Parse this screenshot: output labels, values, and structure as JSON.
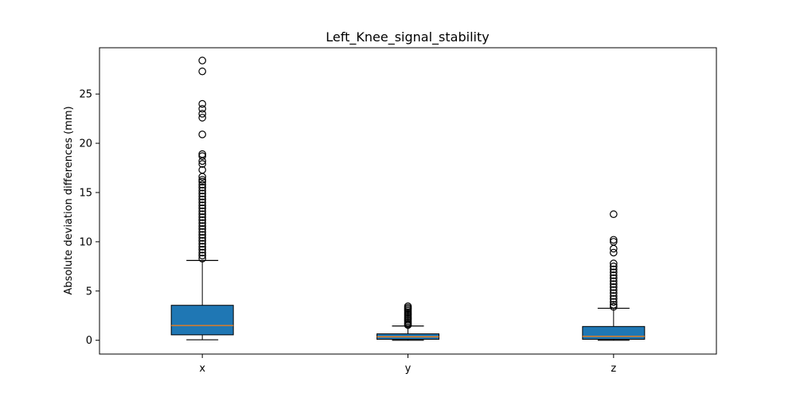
{
  "chart_data": {
    "type": "box",
    "title": "Left_Knee_signal_stability",
    "xlabel": "",
    "ylabel": "Absolute deviation differences (mm)",
    "categories": [
      "x",
      "y",
      "z"
    ],
    "ylim": [
      -1.4,
      29.7
    ],
    "yticks": [
      0,
      5,
      10,
      15,
      20,
      25
    ],
    "grid": false,
    "box_color": "#1f77b4",
    "median_color": "#ff7f0e",
    "boxes": [
      {
        "category": "x",
        "whisker_low": 0.05,
        "q1": 0.55,
        "median": 1.5,
        "q3": 3.55,
        "whisker_high": 8.1,
        "outliers": [
          28.4,
          27.3,
          24.0,
          23.5,
          23.0,
          22.6,
          20.9,
          18.9,
          18.7,
          18.2,
          17.9,
          17.3,
          16.6,
          16.3,
          16.1,
          15.8,
          15.5,
          15.2,
          14.9,
          14.6,
          14.3,
          14.0,
          13.7,
          13.4,
          13.1,
          12.8,
          12.5,
          12.2,
          11.9,
          11.6,
          11.3,
          11.0,
          10.7,
          10.4,
          10.1,
          9.8,
          9.5,
          9.2,
          8.9,
          8.6,
          8.3
        ]
      },
      {
        "category": "y",
        "whisker_low": 0.0,
        "q1": 0.1,
        "median": 0.35,
        "q3": 0.65,
        "whisker_high": 1.45,
        "outliers": [
          3.45,
          3.3,
          3.15,
          3.0,
          2.85,
          2.7,
          2.55,
          2.4,
          2.25,
          2.1,
          1.95,
          1.8,
          1.65,
          1.55
        ]
      },
      {
        "category": "z",
        "whisker_low": 0.0,
        "q1": 0.1,
        "median": 0.4,
        "q3": 1.4,
        "whisker_high": 3.25,
        "outliers": [
          12.8,
          10.2,
          10.0,
          9.3,
          8.9,
          7.8,
          7.5,
          7.2,
          6.9,
          6.6,
          6.3,
          6.0,
          5.7,
          5.4,
          5.1,
          4.8,
          4.5,
          4.2,
          3.9,
          3.6,
          3.4
        ]
      }
    ]
  }
}
